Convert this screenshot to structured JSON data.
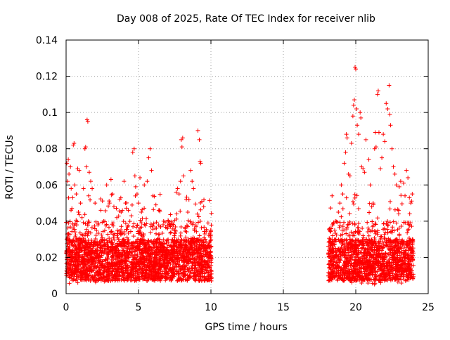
{
  "chart_data": {
    "type": "scatter",
    "title": "Day 008 of 2025, Rate Of TEC Index for receiver nlib",
    "xlabel": "GPS time / hours",
    "ylabel": "ROTI / TECUs",
    "xlim": [
      0,
      25
    ],
    "ylim": [
      0,
      0.14
    ],
    "xticks": [
      0,
      5,
      10,
      15,
      20,
      25
    ],
    "xtick_labels": [
      "0",
      "5",
      "10",
      "15",
      "20",
      "25"
    ],
    "yticks": [
      0,
      0.02,
      0.04,
      0.06,
      0.08,
      0.1,
      0.12,
      0.14
    ],
    "ytick_labels": [
      "0",
      "0.02",
      "0.04",
      "0.06",
      "0.08",
      "0.1",
      "0.12",
      "0.14"
    ],
    "grid": true,
    "marker": "+",
    "series": [
      {
        "name": "ROTI",
        "color": "#ff0000",
        "points": [
          [
            0.05,
            0.072
          ],
          [
            0.1,
            0.062
          ],
          [
            0.15,
            0.074
          ],
          [
            0.2,
            0.066
          ],
          [
            0.3,
            0.07
          ],
          [
            0.35,
            0.058
          ],
          [
            0.4,
            0.047
          ],
          [
            0.45,
            0.053
          ],
          [
            0.5,
            0.082
          ],
          [
            0.55,
            0.083
          ],
          [
            0.6,
            0.06
          ],
          [
            0.7,
            0.055
          ],
          [
            0.8,
            0.069
          ],
          [
            0.85,
            0.045
          ],
          [
            0.9,
            0.068
          ],
          [
            1.0,
            0.05
          ],
          [
            1.1,
            0.042
          ],
          [
            1.2,
            0.058
          ],
          [
            1.3,
            0.08
          ],
          [
            1.35,
            0.081
          ],
          [
            1.4,
            0.07
          ],
          [
            1.45,
            0.096
          ],
          [
            1.5,
            0.095
          ],
          [
            1.6,
            0.067
          ],
          [
            1.7,
            0.062
          ],
          [
            1.8,
            0.058
          ],
          [
            2.0,
            0.05
          ],
          [
            2.2,
            0.038
          ],
          [
            2.4,
            0.046
          ],
          [
            2.6,
            0.04
          ],
          [
            2.8,
            0.06
          ],
          [
            3.0,
            0.05
          ],
          [
            3.1,
            0.063
          ],
          [
            3.2,
            0.055
          ],
          [
            3.3,
            0.048
          ],
          [
            3.5,
            0.042
          ],
          [
            3.7,
            0.052
          ],
          [
            3.8,
            0.045
          ],
          [
            4.0,
            0.062
          ],
          [
            4.1,
            0.05
          ],
          [
            4.3,
            0.046
          ],
          [
            4.5,
            0.043
          ],
          [
            4.6,
            0.078
          ],
          [
            4.7,
            0.08
          ],
          [
            4.75,
            0.065
          ],
          [
            4.8,
            0.059
          ],
          [
            4.9,
            0.055
          ],
          [
            5.0,
            0.05
          ],
          [
            5.1,
            0.064
          ],
          [
            5.2,
            0.045
          ],
          [
            5.4,
            0.06
          ],
          [
            5.6,
            0.062
          ],
          [
            5.7,
            0.075
          ],
          [
            5.8,
            0.08
          ],
          [
            5.9,
            0.068
          ],
          [
            6.0,
            0.054
          ],
          [
            6.2,
            0.049
          ],
          [
            6.4,
            0.046
          ],
          [
            6.7,
            0.038
          ],
          [
            7.0,
            0.036
          ],
          [
            7.2,
            0.037
          ],
          [
            7.5,
            0.035
          ],
          [
            7.6,
            0.056
          ],
          [
            7.7,
            0.058
          ],
          [
            7.8,
            0.055
          ],
          [
            7.9,
            0.062
          ],
          [
            7.95,
            0.085
          ],
          [
            8.0,
            0.081
          ],
          [
            8.05,
            0.086
          ],
          [
            8.1,
            0.065
          ],
          [
            8.3,
            0.052
          ],
          [
            8.4,
            0.045
          ],
          [
            8.6,
            0.068
          ],
          [
            8.7,
            0.062
          ],
          [
            8.8,
            0.058
          ],
          [
            9.1,
            0.09
          ],
          [
            9.2,
            0.085
          ],
          [
            9.25,
            0.073
          ],
          [
            9.3,
            0.072
          ],
          [
            9.5,
            0.048
          ],
          [
            9.8,
            0.039
          ],
          [
            10.0,
            0.035
          ],
          [
            18.2,
            0.035
          ],
          [
            18.4,
            0.038
          ],
          [
            18.6,
            0.04
          ],
          [
            18.8,
            0.045
          ],
          [
            18.9,
            0.05
          ],
          [
            19.0,
            0.06
          ],
          [
            19.1,
            0.055
          ],
          [
            19.2,
            0.072
          ],
          [
            19.3,
            0.078
          ],
          [
            19.35,
            0.088
          ],
          [
            19.4,
            0.086
          ],
          [
            19.5,
            0.066
          ],
          [
            19.6,
            0.065
          ],
          [
            19.7,
            0.083
          ],
          [
            19.8,
            0.098
          ],
          [
            19.85,
            0.104
          ],
          [
            19.9,
            0.107
          ],
          [
            19.95,
            0.125
          ],
          [
            20.0,
            0.124
          ],
          [
            20.05,
            0.102
          ],
          [
            20.1,
            0.093
          ],
          [
            20.2,
            0.088
          ],
          [
            20.3,
            0.1
          ],
          [
            20.35,
            0.097
          ],
          [
            20.4,
            0.07
          ],
          [
            20.5,
            0.069
          ],
          [
            20.6,
            0.067
          ],
          [
            20.7,
            0.085
          ],
          [
            20.9,
            0.074
          ],
          [
            21.0,
            0.06
          ],
          [
            21.1,
            0.048
          ],
          [
            21.2,
            0.05
          ],
          [
            21.3,
            0.08
          ],
          [
            21.35,
            0.089
          ],
          [
            21.4,
            0.081
          ],
          [
            21.5,
            0.11
          ],
          [
            21.55,
            0.112
          ],
          [
            21.6,
            0.089
          ],
          [
            21.7,
            0.069
          ],
          [
            21.8,
            0.075
          ],
          [
            21.9,
            0.088
          ],
          [
            22.0,
            0.084
          ],
          [
            22.1,
            0.105
          ],
          [
            22.2,
            0.102
          ],
          [
            22.3,
            0.115
          ],
          [
            22.35,
            0.099
          ],
          [
            22.4,
            0.093
          ],
          [
            22.5,
            0.08
          ],
          [
            22.6,
            0.07
          ],
          [
            22.7,
            0.066
          ],
          [
            22.8,
            0.06
          ],
          [
            23.0,
            0.059
          ],
          [
            23.1,
            0.062
          ],
          [
            23.3,
            0.061
          ],
          [
            23.4,
            0.054
          ],
          [
            23.5,
            0.068
          ],
          [
            23.6,
            0.064
          ],
          [
            23.7,
            0.053
          ],
          [
            23.8,
            0.05
          ],
          [
            23.9,
            0.055
          ]
        ]
      }
    ],
    "data_windows_hours": [
      [
        0,
        10.05
      ],
      [
        18.1,
        24.0
      ]
    ],
    "dense_band": [
      0.007,
      0.03
    ]
  }
}
